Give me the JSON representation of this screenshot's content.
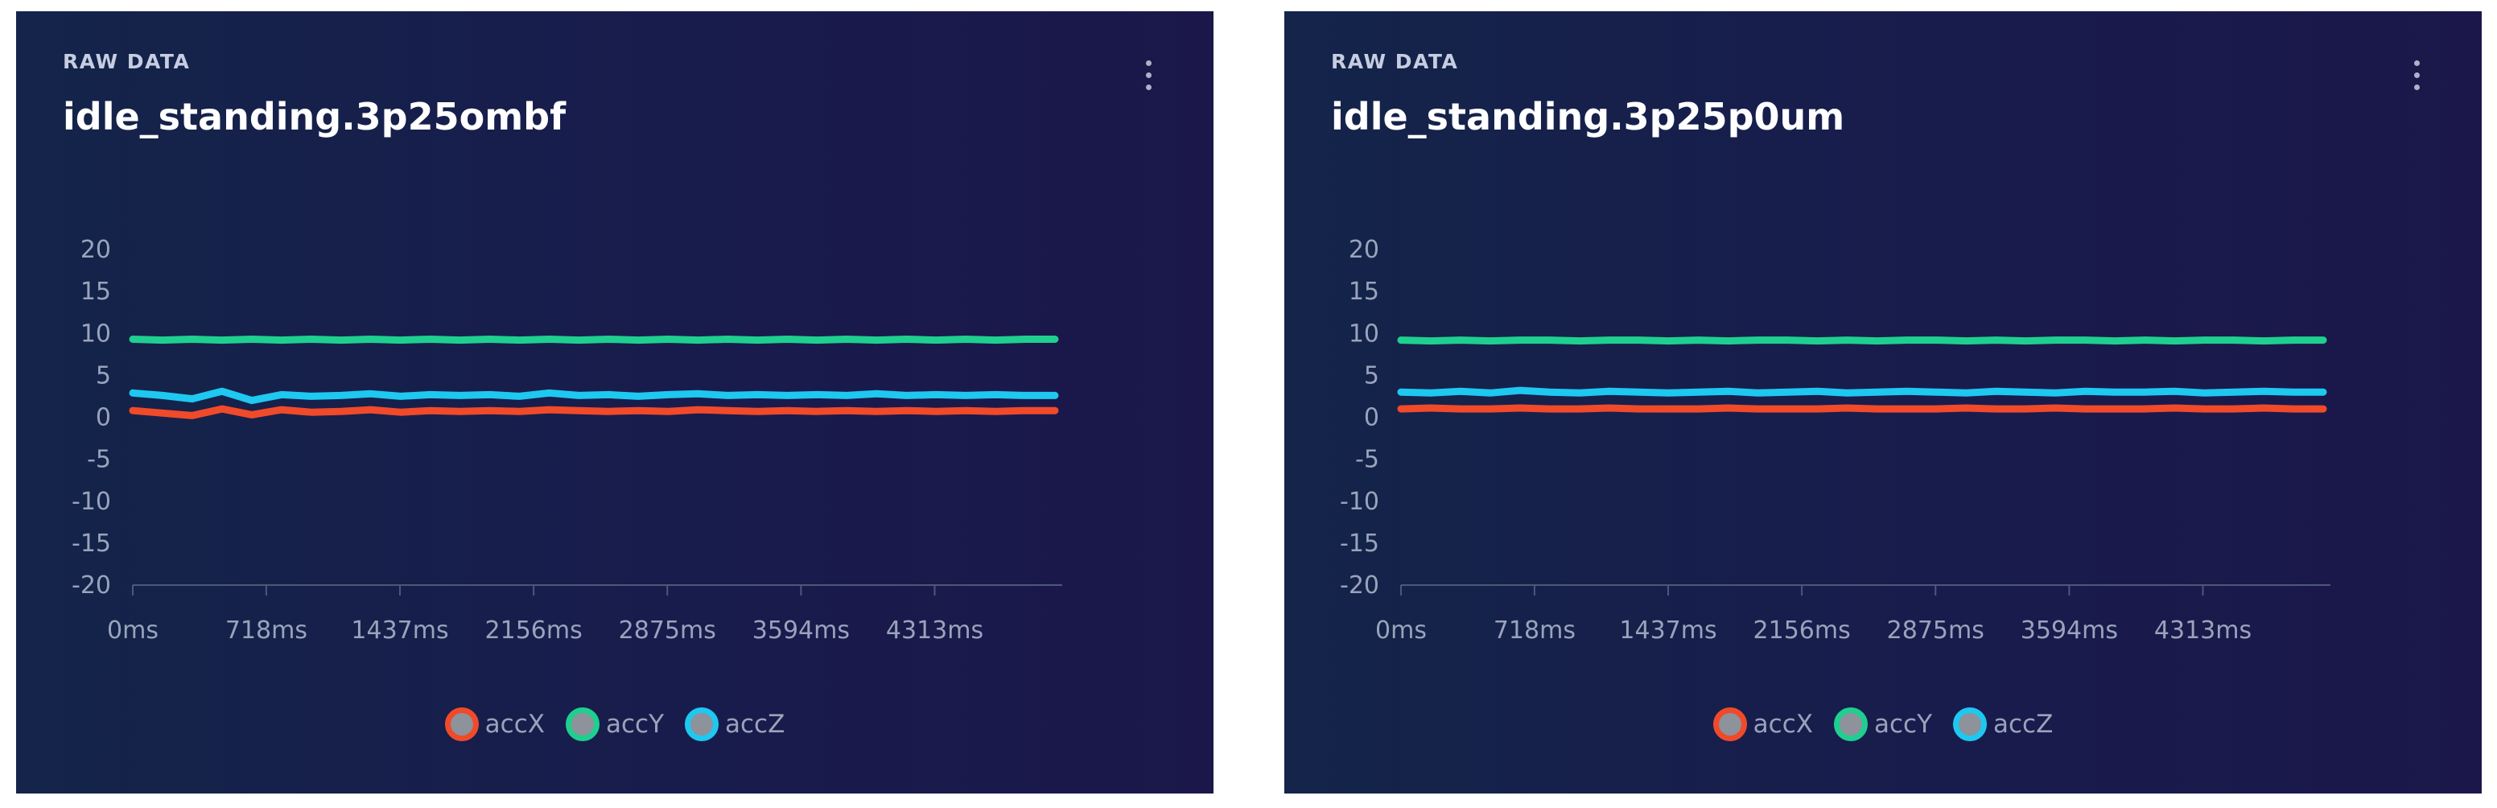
{
  "panels": [
    {
      "label": "RAW DATA",
      "title": "idle_standing.3p25ombf"
    },
    {
      "label": "RAW DATA",
      "title": "idle_standing.3p25p0um"
    }
  ],
  "chart_data": [
    {
      "type": "line",
      "title": "idle_standing.3p25ombf",
      "subtitle": "RAW DATA",
      "xlim": [
        0,
        4999
      ],
      "ylim": [
        -20,
        20
      ],
      "x_ticks": [
        0,
        718,
        1437,
        2156,
        2875,
        3594,
        4313
      ],
      "x_tick_labels": [
        "0ms",
        "718ms",
        "1437ms",
        "2156ms",
        "2875ms",
        "3594ms",
        "4313ms"
      ],
      "y_ticks": [
        20,
        15,
        10,
        5,
        0,
        -5,
        -10,
        -15,
        -20
      ],
      "y_tick_labels": [
        "20",
        "15",
        "10",
        "5",
        "0",
        "-5",
        "-10",
        "-15",
        "-20"
      ],
      "grid": false,
      "legend_position": "bottom-center",
      "x": [
        0,
        160,
        320,
        480,
        640,
        800,
        960,
        1120,
        1280,
        1440,
        1600,
        1760,
        1920,
        2080,
        2240,
        2400,
        2560,
        2720,
        2880,
        3040,
        3200,
        3360,
        3520,
        3680,
        3840,
        4000,
        4160,
        4320,
        4480,
        4640,
        4800,
        4960
      ],
      "series": [
        {
          "name": "accX",
          "color": "#f04a2a",
          "values": [
            0.8,
            0.5,
            0.2,
            1.0,
            0.3,
            0.9,
            0.6,
            0.7,
            0.9,
            0.6,
            0.8,
            0.7,
            0.8,
            0.7,
            0.9,
            0.8,
            0.7,
            0.8,
            0.7,
            0.9,
            0.8,
            0.7,
            0.8,
            0.7,
            0.8,
            0.7,
            0.8,
            0.7,
            0.8,
            0.7,
            0.8,
            0.8
          ]
        },
        {
          "name": "accY",
          "color": "#1fcf8f",
          "values": [
            9.3,
            9.2,
            9.3,
            9.2,
            9.3,
            9.2,
            9.3,
            9.2,
            9.3,
            9.2,
            9.3,
            9.2,
            9.3,
            9.2,
            9.3,
            9.2,
            9.3,
            9.2,
            9.3,
            9.2,
            9.3,
            9.2,
            9.3,
            9.2,
            9.3,
            9.2,
            9.3,
            9.2,
            9.3,
            9.2,
            9.3,
            9.3
          ]
        },
        {
          "name": "accZ",
          "color": "#1ec8f0",
          "values": [
            2.9,
            2.6,
            2.2,
            3.1,
            2.0,
            2.7,
            2.5,
            2.6,
            2.8,
            2.5,
            2.7,
            2.6,
            2.7,
            2.5,
            2.9,
            2.6,
            2.7,
            2.5,
            2.7,
            2.8,
            2.6,
            2.7,
            2.6,
            2.7,
            2.6,
            2.8,
            2.6,
            2.7,
            2.6,
            2.7,
            2.6,
            2.6
          ]
        }
      ]
    },
    {
      "type": "line",
      "title": "idle_standing.3p25p0um",
      "subtitle": "RAW DATA",
      "xlim": [
        0,
        4999
      ],
      "ylim": [
        -20,
        20
      ],
      "x_ticks": [
        0,
        718,
        1437,
        2156,
        2875,
        3594,
        4313
      ],
      "x_tick_labels": [
        "0ms",
        "718ms",
        "1437ms",
        "2156ms",
        "2875ms",
        "3594ms",
        "4313ms"
      ],
      "y_ticks": [
        20,
        15,
        10,
        5,
        0,
        -5,
        -10,
        -15,
        -20
      ],
      "y_tick_labels": [
        "20",
        "15",
        "10",
        "5",
        "0",
        "-5",
        "-10",
        "-15",
        "-20"
      ],
      "grid": false,
      "legend_position": "bottom-center",
      "x": [
        0,
        160,
        320,
        480,
        640,
        800,
        960,
        1120,
        1280,
        1440,
        1600,
        1760,
        1920,
        2080,
        2240,
        2400,
        2560,
        2720,
        2880,
        3040,
        3200,
        3360,
        3520,
        3680,
        3840,
        4000,
        4160,
        4320,
        4480,
        4640,
        4800,
        4960
      ],
      "series": [
        {
          "name": "accX",
          "color": "#f04a2a",
          "values": [
            1.0,
            1.1,
            1.0,
            1.0,
            1.1,
            1.0,
            1.0,
            1.1,
            1.0,
            1.0,
            1.0,
            1.1,
            1.0,
            1.0,
            1.0,
            1.1,
            1.0,
            1.0,
            1.0,
            1.1,
            1.0,
            1.0,
            1.1,
            1.0,
            1.0,
            1.0,
            1.1,
            1.0,
            1.0,
            1.1,
            1.0,
            1.0
          ]
        },
        {
          "name": "accY",
          "color": "#1fcf8f",
          "values": [
            9.2,
            9.1,
            9.2,
            9.1,
            9.2,
            9.2,
            9.1,
            9.2,
            9.2,
            9.1,
            9.2,
            9.1,
            9.2,
            9.2,
            9.1,
            9.2,
            9.1,
            9.2,
            9.2,
            9.1,
            9.2,
            9.1,
            9.2,
            9.2,
            9.1,
            9.2,
            9.1,
            9.2,
            9.2,
            9.1,
            9.2,
            9.2
          ]
        },
        {
          "name": "accZ",
          "color": "#1ec8f0",
          "values": [
            3.0,
            2.9,
            3.1,
            2.9,
            3.2,
            3.0,
            2.9,
            3.1,
            3.0,
            2.9,
            3.0,
            3.1,
            2.9,
            3.0,
            3.1,
            2.9,
            3.0,
            3.1,
            3.0,
            2.9,
            3.1,
            3.0,
            2.9,
            3.1,
            3.0,
            3.0,
            3.1,
            2.9,
            3.0,
            3.1,
            3.0,
            3.0
          ]
        }
      ]
    }
  ]
}
